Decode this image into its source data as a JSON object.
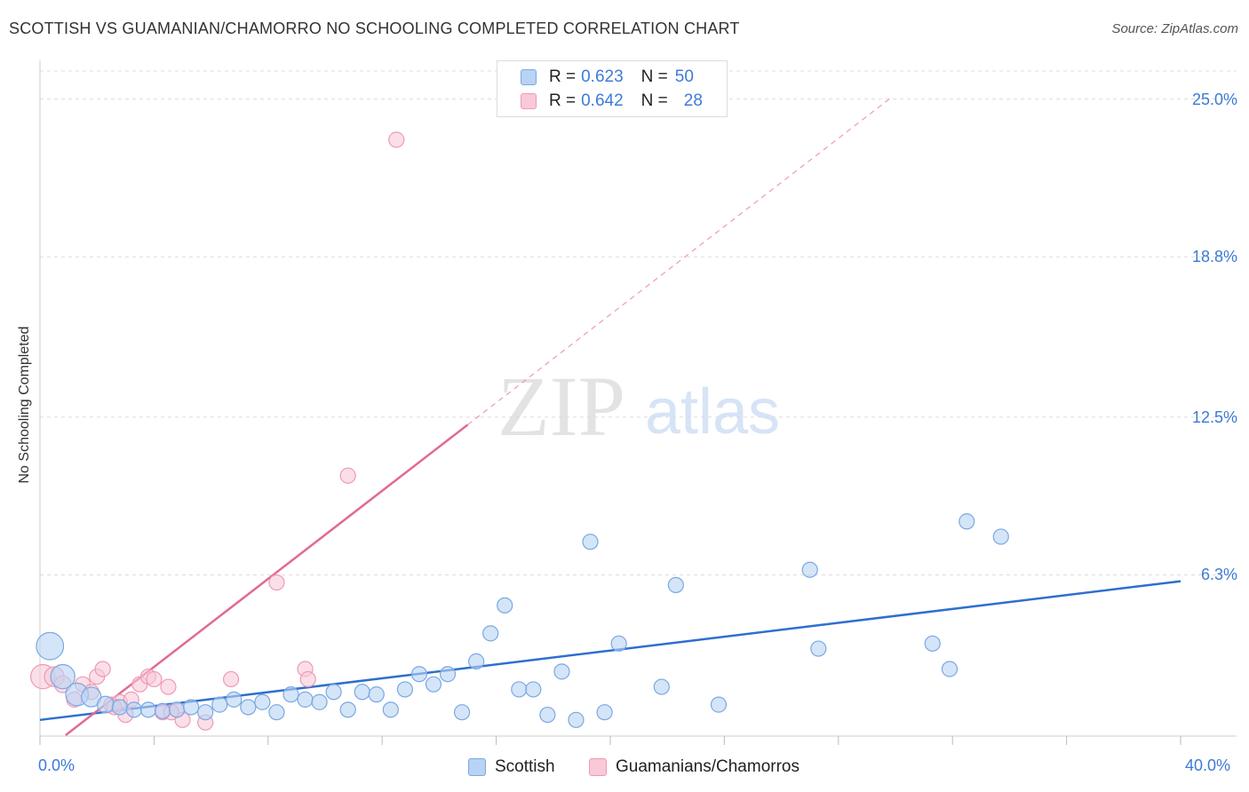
{
  "header": {
    "title": "SCOTTISH VS GUAMANIAN/CHAMORRO NO SCHOOLING COMPLETED CORRELATION CHART",
    "source": "Source: ZipAtlas.com"
  },
  "watermark": {
    "zip": "ZIP",
    "atlas": "atlas"
  },
  "legend": {
    "rows": [
      {
        "r_label": "R = ",
        "r_value": "0.623",
        "n_label": "N = ",
        "n_value": "50"
      },
      {
        "r_label": "R = ",
        "r_value": "0.642",
        "n_label": "N = ",
        "n_value": "28"
      }
    ]
  },
  "colors": {
    "scottish_fill": "#b8d3f3",
    "scottish_stroke": "#7aa8e3",
    "scottish_line": "#2e6fcf",
    "guam_fill": "#f9c9d8",
    "guam_stroke": "#ee9ab3",
    "guam_line": "#e26a93",
    "tick_text": "#3e7ad6",
    "grid": "#dddddd"
  },
  "chart_data": {
    "type": "scatter",
    "title": "SCOTTISH VS GUAMANIAN/CHAMORRO NO SCHOOLING COMPLETED CORRELATION CHART",
    "xlabel": "",
    "ylabel": "No Schooling Completed",
    "xlim": [
      0,
      40
    ],
    "ylim": [
      0,
      26.1
    ],
    "x_tick_labels": [
      "0.0%",
      "40.0%"
    ],
    "y_ticks": [
      6.3,
      12.5,
      18.8,
      25.0
    ],
    "y_tick_labels": [
      "6.3%",
      "12.5%",
      "18.8%",
      "25.0%"
    ],
    "grid": true,
    "legend_position": "top-center",
    "series": [
      {
        "name": "Scottish",
        "R": 0.623,
        "N": 50,
        "trend": {
          "x0": 0.0,
          "y0": 0.6,
          "x1": 40.0,
          "y1": 6.05
        },
        "points": [
          [
            0.35,
            3.5,
            1.8
          ],
          [
            0.8,
            2.3,
            1.6
          ],
          [
            1.3,
            1.6,
            1.5
          ],
          [
            1.8,
            1.5,
            1.3
          ],
          [
            2.3,
            1.2,
            1.1
          ],
          [
            2.8,
            1.1,
            1.0
          ],
          [
            3.3,
            1.0,
            1.0
          ],
          [
            3.8,
            1.0,
            1.0
          ],
          [
            4.3,
            0.95,
            1.0
          ],
          [
            4.8,
            1.0,
            1.0
          ],
          [
            5.3,
            1.1,
            1.0
          ],
          [
            5.8,
            0.9,
            1.0
          ],
          [
            6.3,
            1.2,
            1.0
          ],
          [
            6.8,
            1.4,
            1.0
          ],
          [
            7.3,
            1.1,
            1.0
          ],
          [
            7.8,
            1.3,
            1.0
          ],
          [
            8.3,
            0.9,
            1.0
          ],
          [
            8.8,
            1.6,
            1.0
          ],
          [
            9.3,
            1.4,
            1.0
          ],
          [
            9.8,
            1.3,
            1.0
          ],
          [
            10.3,
            1.7,
            1.0
          ],
          [
            10.8,
            1.0,
            1.0
          ],
          [
            11.3,
            1.7,
            1.0
          ],
          [
            11.8,
            1.6,
            1.0
          ],
          [
            12.3,
            1.0,
            1.0
          ],
          [
            12.8,
            1.8,
            1.0
          ],
          [
            13.3,
            2.4,
            1.0
          ],
          [
            13.8,
            2.0,
            1.0
          ],
          [
            14.3,
            2.4,
            1.0
          ],
          [
            14.8,
            0.9,
            1.0
          ],
          [
            15.3,
            2.9,
            1.0
          ],
          [
            15.8,
            4.0,
            1.0
          ],
          [
            16.3,
            5.1,
            1.0
          ],
          [
            16.8,
            1.8,
            1.0
          ],
          [
            17.3,
            1.8,
            1.0
          ],
          [
            17.8,
            0.8,
            1.0
          ],
          [
            18.3,
            2.5,
            1.0
          ],
          [
            18.8,
            0.6,
            1.0
          ],
          [
            19.3,
            7.6,
            1.0
          ],
          [
            19.8,
            0.9,
            1.0
          ],
          [
            20.3,
            3.6,
            1.0
          ],
          [
            21.8,
            1.9,
            1.0
          ],
          [
            22.3,
            5.9,
            1.0
          ],
          [
            23.8,
            1.2,
            1.0
          ],
          [
            27.0,
            6.5,
            1.0
          ],
          [
            27.3,
            3.4,
            1.0
          ],
          [
            31.3,
            3.6,
            1.0
          ],
          [
            31.9,
            2.6,
            1.0
          ],
          [
            32.5,
            8.4,
            1.0
          ],
          [
            33.7,
            7.8,
            1.0
          ]
        ]
      },
      {
        "name": "Guamanians/Chamorros",
        "R": 0.642,
        "N": 28,
        "trend_solid": {
          "x0": 0.9,
          "y0": 0.0,
          "x1": 15.0,
          "y1": 12.2
        },
        "trend_dashed": {
          "x0": 15.0,
          "y0": 12.2,
          "x1": 29.9,
          "y1": 25.1
        },
        "points": [
          [
            0.1,
            2.3,
            1.6
          ],
          [
            0.5,
            2.3,
            1.3
          ],
          [
            0.8,
            2.0,
            1.1
          ],
          [
            1.5,
            2.0,
            1.0
          ],
          [
            1.8,
            1.7,
            1.0
          ],
          [
            2.0,
            2.3,
            1.0
          ],
          [
            2.2,
            2.6,
            1.0
          ],
          [
            2.5,
            1.2,
            1.0
          ],
          [
            2.8,
            1.3,
            1.0
          ],
          [
            3.0,
            0.8,
            1.0
          ],
          [
            3.2,
            1.4,
            1.0
          ],
          [
            3.5,
            2.0,
            1.0
          ],
          [
            3.8,
            2.3,
            1.0
          ],
          [
            4.0,
            2.2,
            1.0
          ],
          [
            4.3,
            0.9,
            1.0
          ],
          [
            4.5,
            1.9,
            1.0
          ],
          [
            4.8,
            1.0,
            1.0
          ],
          [
            5.0,
            0.6,
            1.0
          ],
          [
            5.8,
            0.5,
            1.0
          ],
          [
            6.7,
            2.2,
            1.0
          ],
          [
            8.3,
            6.0,
            1.0
          ],
          [
            9.3,
            2.6,
            1.0
          ],
          [
            9.4,
            2.2,
            1.0
          ],
          [
            10.8,
            10.2,
            1.0
          ],
          [
            12.5,
            23.4,
            1.0
          ],
          [
            1.2,
            1.4,
            1.0
          ],
          [
            2.6,
            1.1,
            1.0
          ],
          [
            4.6,
            0.9,
            1.0
          ]
        ]
      }
    ]
  },
  "bottom_legend": {
    "scottish": "Scottish",
    "guam": "Guamanians/Chamorros"
  }
}
